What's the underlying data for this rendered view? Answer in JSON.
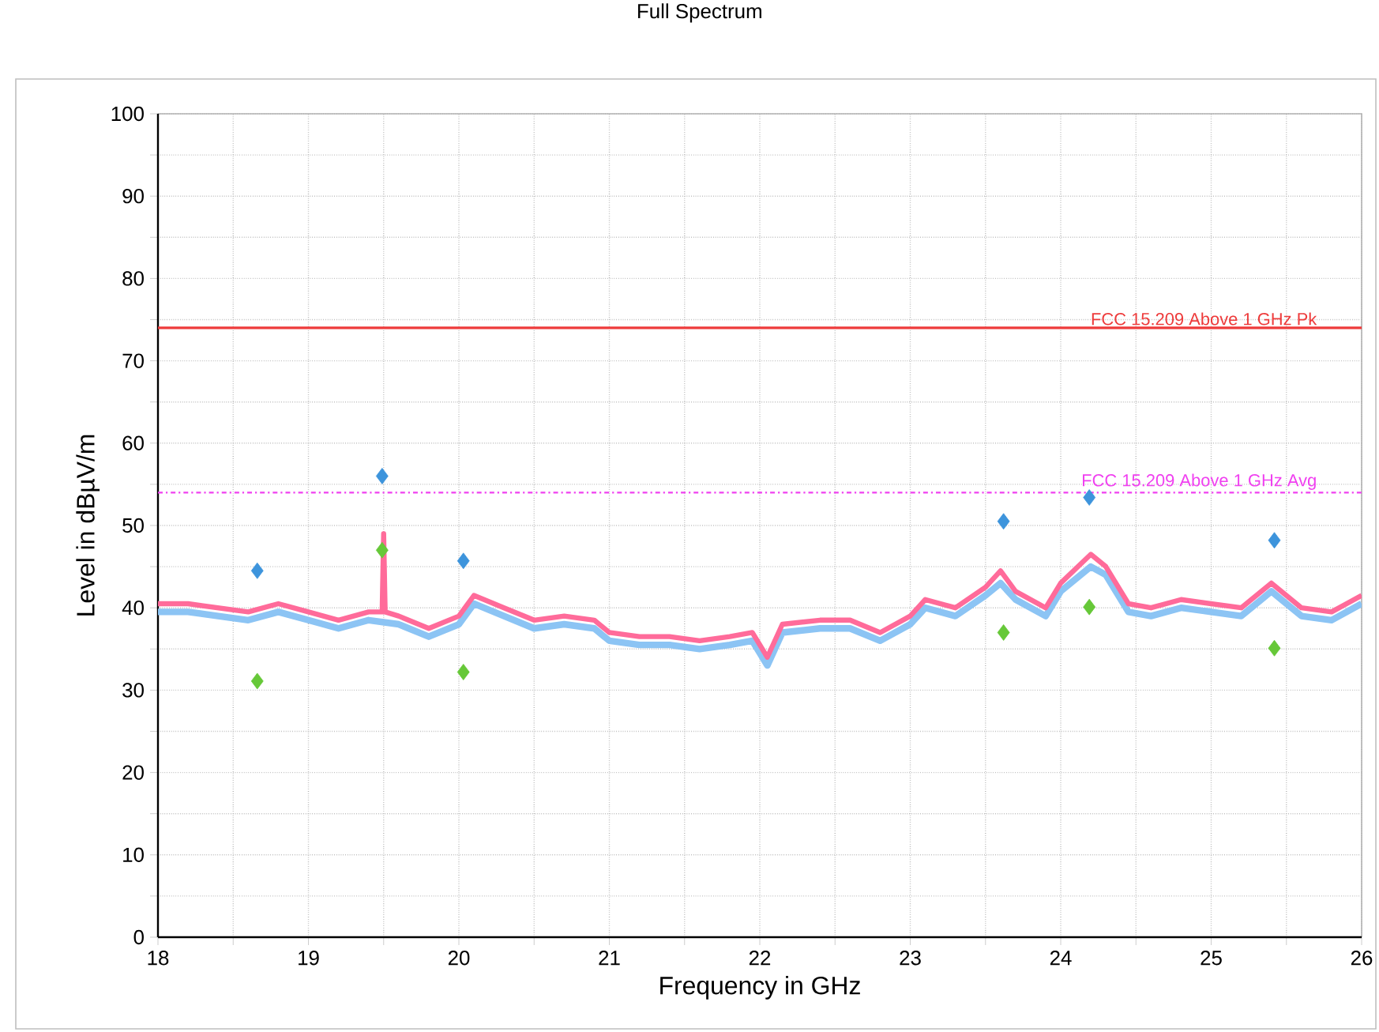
{
  "chart_data": {
    "type": "line",
    "title": "Full Spectrum",
    "xlabel": "Frequency in GHz",
    "ylabel": "Level in dBµV/m",
    "xlim": [
      18,
      26
    ],
    "ylim": [
      0,
      100
    ],
    "xticks": [
      18,
      {
        "value": 18.5,
        "label": null
      },
      19,
      {
        "value": 19.5,
        "label": null
      },
      20,
      {
        "value": 20.5,
        "label": null
      },
      21,
      {
        "value": 21.5,
        "label": null
      },
      22,
      {
        "value": 22.5,
        "label": null
      },
      23,
      {
        "value": 23.5,
        "label": null
      },
      24,
      {
        "value": 24.5,
        "label": null
      },
      25,
      {
        "value": 25.5,
        "label": null
      },
      26
    ],
    "yticks": [
      0,
      {
        "value": 5,
        "label": null
      },
      10,
      {
        "value": 15,
        "label": null
      },
      20,
      {
        "value": 25,
        "label": null
      },
      30,
      {
        "value": 35,
        "label": null
      },
      40,
      {
        "value": 45,
        "label": null
      },
      50,
      {
        "value": 55,
        "label": null
      },
      60,
      {
        "value": 65,
        "label": null
      },
      70,
      {
        "value": 75,
        "label": null
      },
      80,
      {
        "value": 85,
        "label": null
      },
      90,
      {
        "value": 95,
        "label": null
      },
      100
    ],
    "grid": true,
    "series": [
      {
        "color": "#8cc4f4",
        "marker": "none",
        "x": [
          18.0,
          18.2,
          18.4,
          18.6,
          18.8,
          19.0,
          19.2,
          19.4,
          19.6,
          19.8,
          20.0,
          20.1,
          20.3,
          20.5,
          20.7,
          20.9,
          21.0,
          21.2,
          21.4,
          21.6,
          21.8,
          21.95,
          22.05,
          22.15,
          22.4,
          22.6,
          22.8,
          23.0,
          23.1,
          23.3,
          23.5,
          23.6,
          23.7,
          23.9,
          24.0,
          24.2,
          24.3,
          24.45,
          24.6,
          24.8,
          25.0,
          25.2,
          25.4,
          25.6,
          25.8,
          26.0
        ],
        "values": [
          39.5,
          39.5,
          39,
          38.5,
          39.5,
          38.5,
          37.5,
          38.5,
          38,
          36.5,
          38,
          40.5,
          39,
          37.5,
          38,
          37.5,
          36,
          35.5,
          35.5,
          35,
          35.5,
          36,
          33,
          37,
          37.5,
          37.5,
          36,
          38,
          40,
          39,
          41.5,
          43,
          41,
          39,
          42,
          45,
          44,
          39.5,
          39,
          40,
          39.5,
          39,
          42,
          39,
          38.5,
          40.5
        ]
      },
      {
        "color": "#ff6b9a",
        "marker": "none",
        "x": [
          18.0,
          18.2,
          18.4,
          18.6,
          18.8,
          19.0,
          19.2,
          19.4,
          19.49,
          19.5,
          19.51,
          19.6,
          19.8,
          20.0,
          20.1,
          20.3,
          20.5,
          20.7,
          20.9,
          21.0,
          21.2,
          21.4,
          21.6,
          21.8,
          21.95,
          22.05,
          22.15,
          22.4,
          22.6,
          22.8,
          23.0,
          23.1,
          23.3,
          23.5,
          23.6,
          23.7,
          23.9,
          24.0,
          24.2,
          24.3,
          24.45,
          24.6,
          24.8,
          25.0,
          25.2,
          25.4,
          25.6,
          25.8,
          26.0
        ],
        "values": [
          40.5,
          40.5,
          40,
          39.5,
          40.5,
          39.5,
          38.5,
          39.5,
          39.5,
          49,
          39.5,
          39,
          37.5,
          39,
          41.5,
          40,
          38.5,
          39,
          38.5,
          37,
          36.5,
          36.5,
          36,
          36.5,
          37,
          34,
          38,
          38.5,
          38.5,
          37,
          39,
          41,
          40,
          42.5,
          44.5,
          42,
          40,
          43,
          46.5,
          45,
          40.5,
          40,
          41,
          40.5,
          40,
          43,
          40,
          39.5,
          41.5
        ]
      },
      {
        "type": "scatter",
        "color": "#3d94dc",
        "marker": "diamond",
        "x": [
          18.66,
          19.49,
          20.03,
          23.62,
          24.19,
          25.42
        ],
        "values": [
          44.5,
          56.0,
          45.7,
          50.5,
          53.4,
          48.2
        ]
      },
      {
        "type": "scatter",
        "color": "#66c838",
        "marker": "diamond",
        "x": [
          18.66,
          19.49,
          20.03,
          23.62,
          24.19,
          25.42
        ],
        "values": [
          31.1,
          47.0,
          32.2,
          37.0,
          40.1,
          35.1
        ]
      }
    ],
    "ref_lines": [
      {
        "axis": "y",
        "value": 74,
        "label": "FCC 15.209 Above 1 GHz Pk",
        "color": "#ee3b3b",
        "line_style": "solid"
      },
      {
        "axis": "y",
        "value": 54,
        "label": "FCC 15.209 Above 1 GHz Avg",
        "color": "#f040f0",
        "line_style": "dotted"
      }
    ]
  }
}
